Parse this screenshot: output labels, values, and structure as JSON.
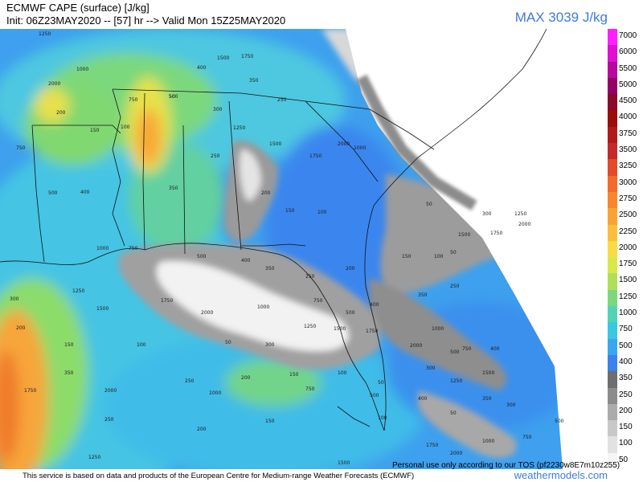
{
  "header": {
    "title_line1": "ECMWF CAPE (surface) [J/kg]",
    "title_line2": "Init: 06Z23MAY2020 -- [57] hr --> Valid Mon 15Z25MAY2020",
    "max_label": "MAX 3039 J/kg"
  },
  "legend": {
    "items": [
      {
        "label": "7000",
        "color": "#ff1fff"
      },
      {
        "label": "6000",
        "color": "#df10d0"
      },
      {
        "label": "5500",
        "color": "#b8089f"
      },
      {
        "label": "5000",
        "color": "#960066"
      },
      {
        "label": "4500",
        "color": "#8a0a2c"
      },
      {
        "label": "4000",
        "color": "#9b0d0d"
      },
      {
        "label": "3750",
        "color": "#b21a1a"
      },
      {
        "label": "3500",
        "color": "#c42a2a"
      },
      {
        "label": "3250",
        "color": "#e34a2a"
      },
      {
        "label": "3000",
        "color": "#f46a2a"
      },
      {
        "label": "2750",
        "color": "#f9862e"
      },
      {
        "label": "2500",
        "color": "#fba236"
      },
      {
        "label": "2250",
        "color": "#fbbe3c"
      },
      {
        "label": "2000",
        "color": "#f9dc44"
      },
      {
        "label": "1750",
        "color": "#d8e84c"
      },
      {
        "label": "1500",
        "color": "#aee05a"
      },
      {
        "label": "1250",
        "color": "#7cd87c"
      },
      {
        "label": "1000",
        "color": "#52d4b4"
      },
      {
        "label": "750",
        "color": "#38c8e4"
      },
      {
        "label": "500",
        "color": "#3aa6f0"
      },
      {
        "label": "400",
        "color": "#3a82ec"
      },
      {
        "label": "350",
        "color": "#6e6e6e"
      },
      {
        "label": "250",
        "color": "#8c8c8c"
      },
      {
        "label": "200",
        "color": "#ababab"
      },
      {
        "label": "150",
        "color": "#c8c8c8"
      },
      {
        "label": "100",
        "color": "#e2e2e2"
      },
      {
        "label": "50",
        "color": "#f6f6f6"
      }
    ]
  },
  "map": {
    "contour_labels": [
      "1250",
      "1500",
      "1750",
      "2000",
      "1000",
      "750",
      "500",
      "400",
      "350",
      "250",
      "200",
      "150",
      "100",
      "50",
      "300"
    ]
  },
  "footer": {
    "source_text": "This service is based on data and products of the European Centre for Medium-range Weather Forecasts (ECMWF)",
    "disclaimer": "Personal use only according to our TOS (pf2230w8E7m10z255)",
    "credit": "weathermodels.com"
  }
}
